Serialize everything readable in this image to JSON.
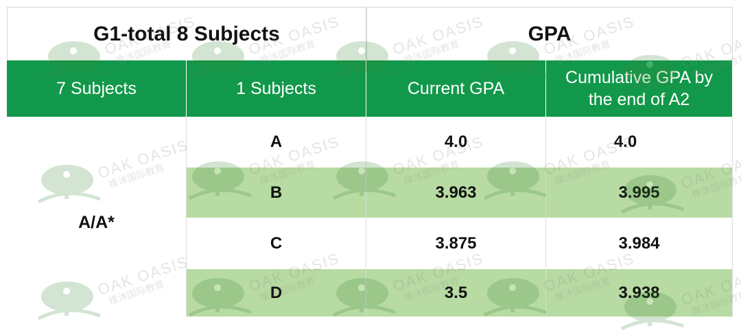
{
  "title_row": {
    "left": "G1-total 8 Subjects",
    "right": "GPA"
  },
  "header": [
    "7 Subjects",
    "1 Subjects",
    "Current GPA",
    "Cumulative GPA by the end of A2"
  ],
  "merged_cell": "A/A*",
  "rows": [
    {
      "grade": "A",
      "current": "4.0",
      "cumulative": "4.0"
    },
    {
      "grade": "B",
      "current": "3.963",
      "cumulative": "3.995"
    },
    {
      "grade": "C",
      "current": "3.875",
      "cumulative": "3.984"
    },
    {
      "grade": "D",
      "current": "3.5",
      "cumulative": "3.938"
    }
  ],
  "watermark": {
    "line1": "OAK OASIS",
    "line2": "橡沐国际教育"
  },
  "colors": {
    "header_green": "#12984a",
    "row_green": "#b7dba2",
    "text": "#111111"
  }
}
